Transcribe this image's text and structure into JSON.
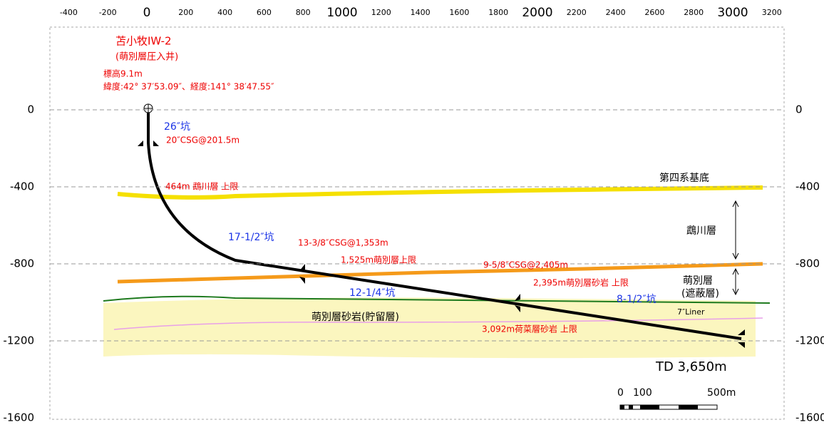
{
  "x_axis": {
    "ticks": [
      -400,
      -200,
      0,
      200,
      400,
      600,
      800,
      1000,
      1200,
      1400,
      1600,
      1800,
      2000,
      2200,
      2400,
      2600,
      2800,
      3000,
      3200
    ]
  },
  "y_axis": {
    "ticks": [
      0,
      -400,
      -800,
      -1200,
      -1600
    ]
  },
  "labels": [
    "苫小牧IW-2",
    "(萌別層圧入井)",
    "標高9.1m",
    "緯度:42° 37′53.09″、経度:141° 38′47.55″",
    "26″坑",
    "20″CSG@201.5m",
    "464m 鵡川層 上限",
    "第四系基底",
    "鵡川層",
    "17-1/2″坑",
    "13-3/8″CSG@1,353m",
    "1,525m萌別層上限",
    "9-5/8″CSG@2,405m",
    "萌別層",
    "(遮蔽層)",
    "2,395m萌別層砂岩 上限",
    "12-1/4″坑",
    "8-1/2″坑",
    "7″Liner",
    "萌別層砂岩(貯留層)",
    "3,092m荷菜層砂岩 上限",
    "TD 3,650m"
  ],
  "scale_bar": {
    "labels": [
      "0",
      "100",
      "500m"
    ]
  }
}
